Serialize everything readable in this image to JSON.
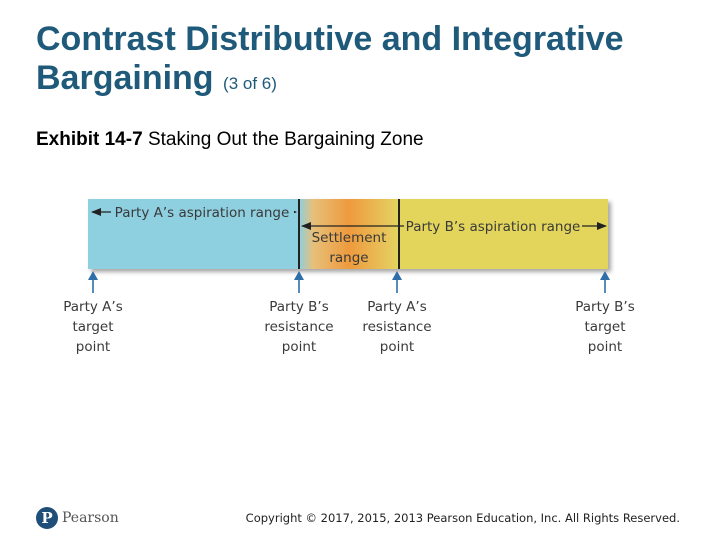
{
  "slide": {
    "title_line1": "Contrast Distributive and Integrative",
    "title_line2": "Bargaining",
    "title_suffix": "(3 of 6)",
    "exhibit_number": "Exhibit 14-7",
    "exhibit_caption": "Staking Out the Bargaining Zone"
  },
  "diagram": {
    "bands": {
      "party_a_aspiration": "Party A’s aspiration range",
      "party_b_aspiration": "Party B’s aspiration range",
      "settlement_line1": "Settlement",
      "settlement_line2": "range"
    },
    "points": [
      {
        "lines": [
          "Party A’s",
          "target",
          "point"
        ]
      },
      {
        "lines": [
          "Party B’s",
          "resistance",
          "point"
        ]
      },
      {
        "lines": [
          "Party A’s",
          "resistance",
          "point"
        ]
      },
      {
        "lines": [
          "Party B’s",
          "target",
          "point"
        ]
      }
    ],
    "colors": {
      "party_a": "#8ecfe0",
      "party_b": "#e3d55c",
      "settlement_core": "#ee9a3d",
      "arrow": "#2f6fa8"
    }
  },
  "footer": {
    "logo_letter": "P",
    "logo_text": "Pearson",
    "copyright": "Copyright © 2017, 2015, 2013 Pearson Education, Inc. All Rights Reserved."
  }
}
